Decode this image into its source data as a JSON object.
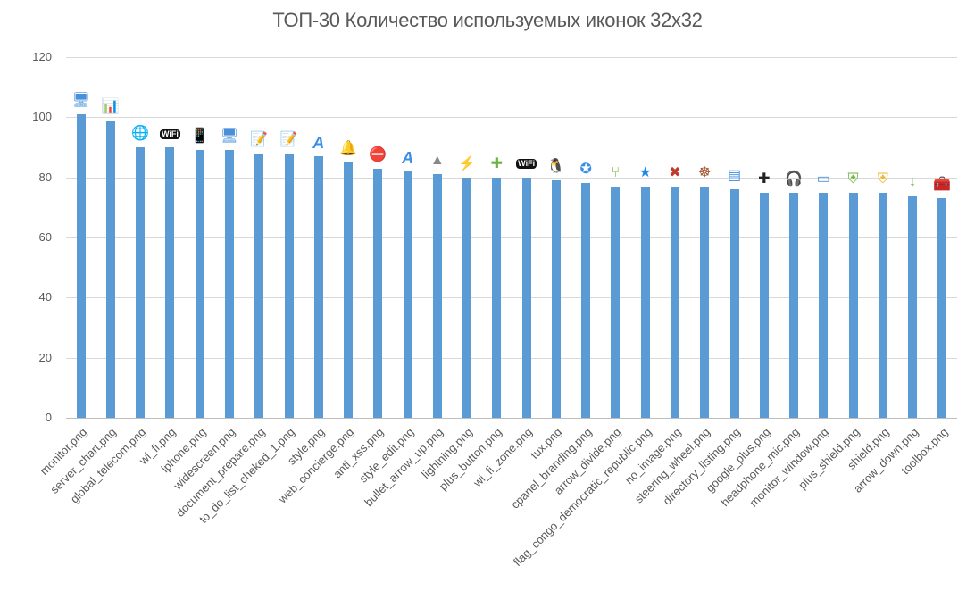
{
  "chart_data": {
    "type": "bar",
    "title": "ТОП-30 Количество используемых иконок 32x32",
    "xlabel": "",
    "ylabel": "",
    "ylim": [
      0,
      120
    ],
    "yticks": [
      0,
      20,
      40,
      60,
      80,
      100,
      120
    ],
    "grid": true,
    "legend": "none",
    "bar_color": "#5b9bd5",
    "categories": [
      "monitor.png",
      "server_chart.png",
      "global_telecom.png",
      "wi_fi.png",
      "iphone.png",
      "widescreen.png",
      "document_prepare.png",
      "to_do_list_cheked_1.png",
      "style.png",
      "web_concierge.png",
      "anti_xss.png",
      "style_edit.png",
      "bullet_arrow_up.png",
      "lightning.png",
      "plus_button.png",
      "wi_fi_zone.png",
      "tux.png",
      "cpanel_branding.png",
      "arrow_divide.png",
      "flag_congo_democratic_republic.png",
      "no_image.png",
      "steering_wheel.png",
      "directory_listing.png",
      "google_plus.png",
      "headphone_mic.png",
      "monitor_window.png",
      "plus_shield.png",
      "shield.png",
      "arrow_down.png",
      "toolbox.png"
    ],
    "values": [
      101,
      99,
      90,
      90,
      89,
      89,
      88,
      88,
      87,
      85,
      83,
      82,
      81,
      80,
      80,
      80,
      79,
      78,
      77,
      77,
      77,
      77,
      76,
      75,
      75,
      75,
      75,
      75,
      74,
      73
    ],
    "icons": [
      "monitor-icon",
      "server-chart-icon",
      "globe-icon",
      "wifi-icon",
      "phone-icon",
      "monitor-icon",
      "document-pencil-icon",
      "checklist-pencil-icon",
      "font-style-icon",
      "bell-icon",
      "shield-xss-icon",
      "font-edit-icon",
      "arrow-up-icon",
      "lightning-icon",
      "plus-button-icon",
      "wifi-zone-icon",
      "penguin-icon",
      "cpanel-icon",
      "arrow-divide-icon",
      "flag-icon",
      "no-image-icon",
      "steering-wheel-icon",
      "document-list-icon",
      "google-plus-icon",
      "headphone-icon",
      "monitor-window-icon",
      "plus-shield-icon",
      "shield-icon",
      "arrow-down-icon",
      "toolbox-icon"
    ]
  }
}
